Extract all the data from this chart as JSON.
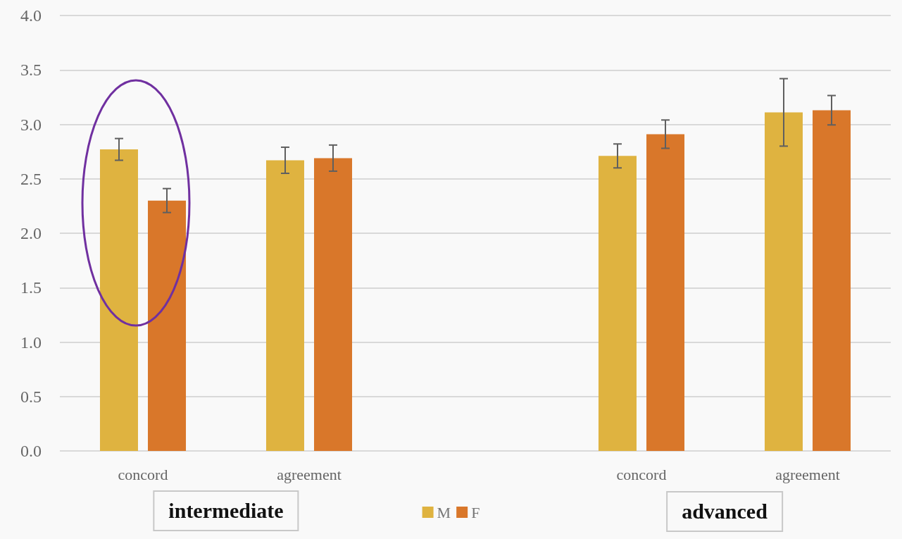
{
  "chart_data": {
    "type": "bar",
    "categories": [
      "concord",
      "agreement",
      null,
      "concord",
      "agreement"
    ],
    "series": [
      {
        "name": "M",
        "color": "#dfb340",
        "values": [
          2.77,
          2.67,
          null,
          2.71,
          3.11
        ],
        "errors": [
          0.1,
          0.12,
          null,
          0.11,
          0.31
        ]
      },
      {
        "name": "F",
        "color": "#d9772a",
        "values": [
          2.3,
          2.69,
          null,
          2.91,
          3.13
        ],
        "errors": [
          0.11,
          0.12,
          null,
          0.13,
          0.135
        ]
      }
    ],
    "ylim": [
      0,
      4
    ],
    "yticks": [
      {
        "value": 0,
        "label": "0.0"
      },
      0.5,
      {
        "value": 1,
        "label": "1.0"
      },
      1.5,
      {
        "value": 2,
        "label": "2.0"
      },
      2.5,
      {
        "value": 3,
        "label": "3.0"
      },
      3.5,
      {
        "value": 4,
        "label": "4.0"
      }
    ],
    "grid": "y",
    "legend": "bottom",
    "annotations": [
      "intermediate",
      "advanced"
    ]
  }
}
